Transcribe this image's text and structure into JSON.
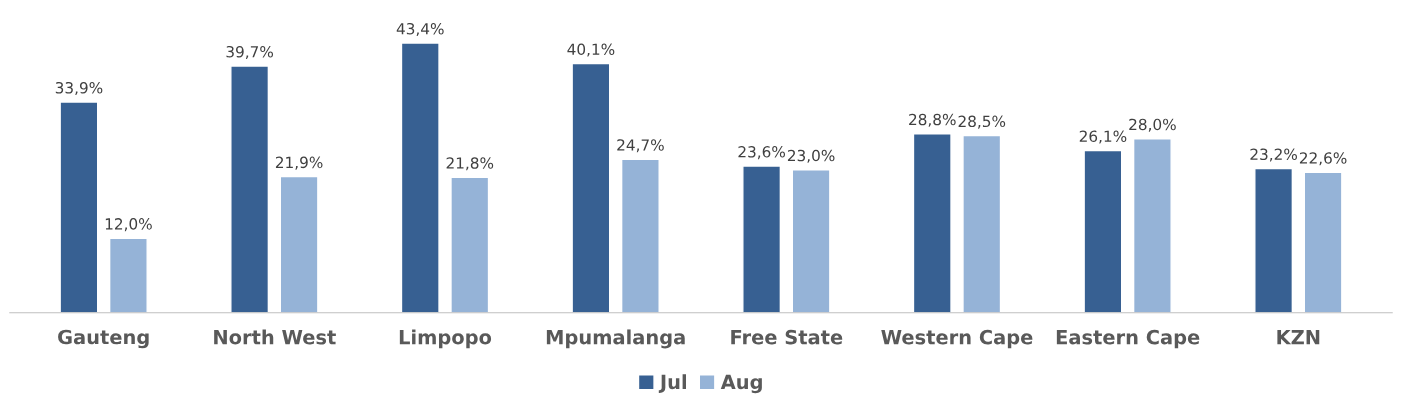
{
  "chart_data": {
    "type": "bar",
    "categories": [
      "Gauteng",
      "North West",
      "Limpopo",
      "Mpumalanga",
      "Free State",
      "Western Cape",
      "Eastern Cape",
      "KZN"
    ],
    "series": [
      {
        "name": "Jul",
        "color": "#376092",
        "values": [
          33.9,
          39.7,
          43.4,
          40.1,
          23.6,
          28.8,
          26.1,
          23.2
        ],
        "value_labels": [
          "33,9%",
          "39,7%",
          "43,4%",
          "40,1%",
          "23,6%",
          "28,8%",
          "26,1%",
          "23,2%"
        ]
      },
      {
        "name": "Aug",
        "color": "#95b3d7",
        "values": [
          12.0,
          21.9,
          21.8,
          24.7,
          23.0,
          28.5,
          28.0,
          22.6
        ],
        "value_labels": [
          "12,0%",
          "21,9%",
          "21,8%",
          "24,7%",
          "23,0%",
          "28,5%",
          "28,0%",
          "22,6%"
        ]
      }
    ],
    "legend": "bottom"
  }
}
